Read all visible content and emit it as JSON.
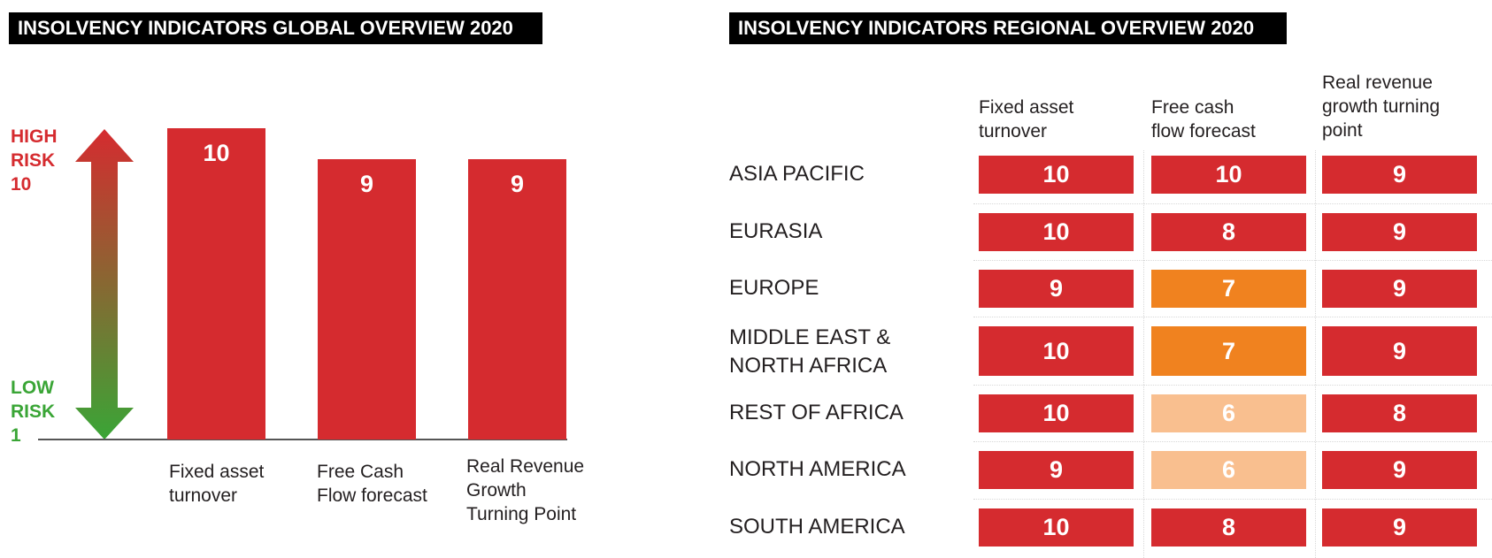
{
  "colors": {
    "very_high": "#d52b2f",
    "high": "#f0821f",
    "medium": "#f9bf8f",
    "high_label": "#d52b2f",
    "low_label": "#3aa536"
  },
  "left_title": "INSOLVENCY INDICATORS GLOBAL OVERVIEW 2020",
  "right_title": "INSOLVENCY INDICATORS REGIONAL OVERVIEW 2020",
  "risk_scale": {
    "high": [
      "HIGH",
      "RISK",
      "10"
    ],
    "low": [
      "LOW",
      "RISK",
      "1"
    ]
  },
  "chart_data": [
    {
      "type": "bar",
      "title": "INSOLVENCY INDICATORS GLOBAL OVERVIEW 2020",
      "categories": [
        [
          "Fixed asset",
          "turnover"
        ],
        [
          "Free Cash",
          "Flow forecast"
        ],
        [
          "Real Revenue",
          "Growth",
          "Turning Point"
        ]
      ],
      "values": [
        10,
        9,
        9
      ],
      "ylim": [
        1,
        10
      ],
      "grid": false,
      "value_labels": true
    },
    {
      "type": "table",
      "title": "INSOLVENCY INDICATORS REGIONAL OVERVIEW 2020",
      "columns": [
        [
          "Fixed asset",
          "turnover"
        ],
        [
          "Free cash",
          "flow forecast"
        ],
        [
          "Real revenue",
          "growth turning",
          "point"
        ]
      ],
      "rows": [
        {
          "label": [
            "ASIA PACIFIC"
          ],
          "values": [
            10,
            10,
            9
          ]
        },
        {
          "label": [
            "EURASIA"
          ],
          "values": [
            10,
            8,
            9
          ]
        },
        {
          "label": [
            "EUROPE"
          ],
          "values": [
            9,
            7,
            9
          ]
        },
        {
          "label": [
            "MIDDLE EAST &",
            "NORTH AFRICA"
          ],
          "values": [
            10,
            7,
            9
          ]
        },
        {
          "label": [
            "REST OF AFRICA"
          ],
          "values": [
            10,
            6,
            8
          ]
        },
        {
          "label": [
            "NORTH AMERICA"
          ],
          "values": [
            9,
            6,
            9
          ]
        },
        {
          "label": [
            "SOUTH AMERICA"
          ],
          "values": [
            10,
            8,
            9
          ]
        }
      ]
    }
  ]
}
